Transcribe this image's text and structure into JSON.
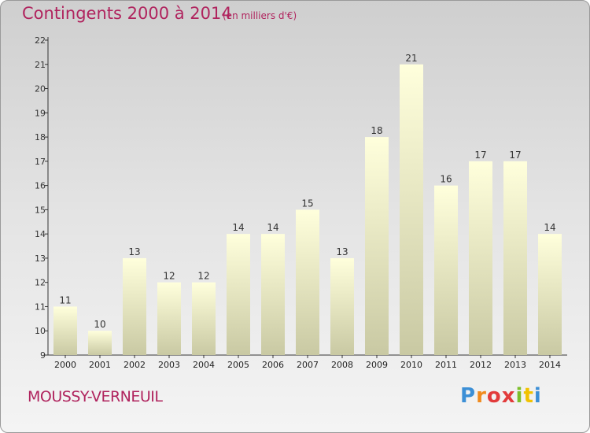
{
  "header": {
    "title": "Contingents 2000 à 2014",
    "subtitle": "(en milliers d'€)"
  },
  "footer": {
    "place": "MOUSSY-VERNEUIL",
    "logo": [
      "P",
      "r",
      "o",
      "x",
      "i",
      "t",
      "i"
    ]
  },
  "colors": {
    "title": "#b0245e",
    "bar_top": "#ffffdc",
    "bar_bottom": "#c9c9a3",
    "logo": [
      "#3c8fd6",
      "#f08a1c",
      "#e23b3b",
      "#e23b3b",
      "#7cbf2a",
      "#f2c200",
      "#3c8fd6"
    ]
  },
  "chart_data": {
    "type": "bar",
    "title": "Contingents 2000 à 2014",
    "subtitle": "(en milliers d'€)",
    "categories": [
      "2000",
      "2001",
      "2002",
      "2003",
      "2004",
      "2005",
      "2006",
      "2007",
      "2008",
      "2009",
      "2010",
      "2011",
      "2012",
      "2013",
      "2014"
    ],
    "values": [
      11,
      10,
      13,
      12,
      12,
      14,
      14,
      15,
      13,
      18,
      21,
      16,
      17,
      17,
      14
    ],
    "ylim": [
      9,
      22
    ],
    "yticks": [
      9,
      10,
      11,
      12,
      13,
      14,
      15,
      16,
      17,
      18,
      19,
      20,
      21,
      22
    ],
    "grid": false,
    "legend": "none"
  }
}
